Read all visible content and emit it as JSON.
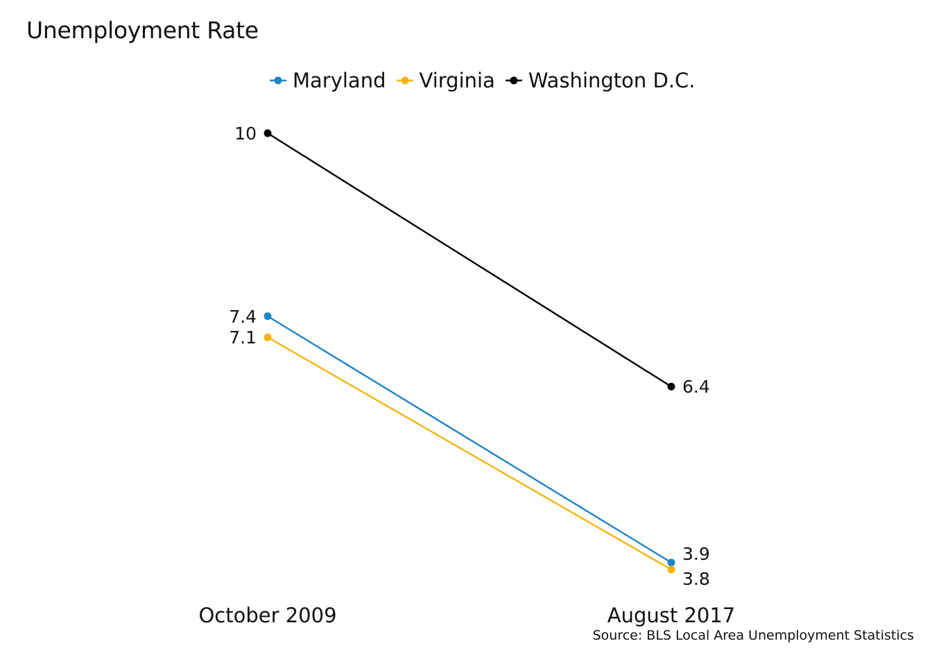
{
  "chart_data": {
    "type": "line",
    "title": "Unemployment Rate",
    "categories": [
      "October 2009",
      "August 2017"
    ],
    "series": [
      {
        "name": "Maryland",
        "values": [
          7.4,
          3.9
        ],
        "labels": [
          "7.4",
          "3.9"
        ],
        "color": "#1f84c6"
      },
      {
        "name": "Virginia",
        "values": [
          7.1,
          3.8
        ],
        "labels": [
          "7.1",
          "3.8"
        ],
        "color": "#f6b40e"
      },
      {
        "name": "Washington D.C.",
        "values": [
          10,
          6.4
        ],
        "labels": [
          "10",
          "6.4"
        ],
        "color": "#000000"
      }
    ],
    "ylim": [
      3.8,
      10
    ],
    "grid": false,
    "legend": "top",
    "source": "Source: BLS Local Area Unemployment Statistics"
  }
}
